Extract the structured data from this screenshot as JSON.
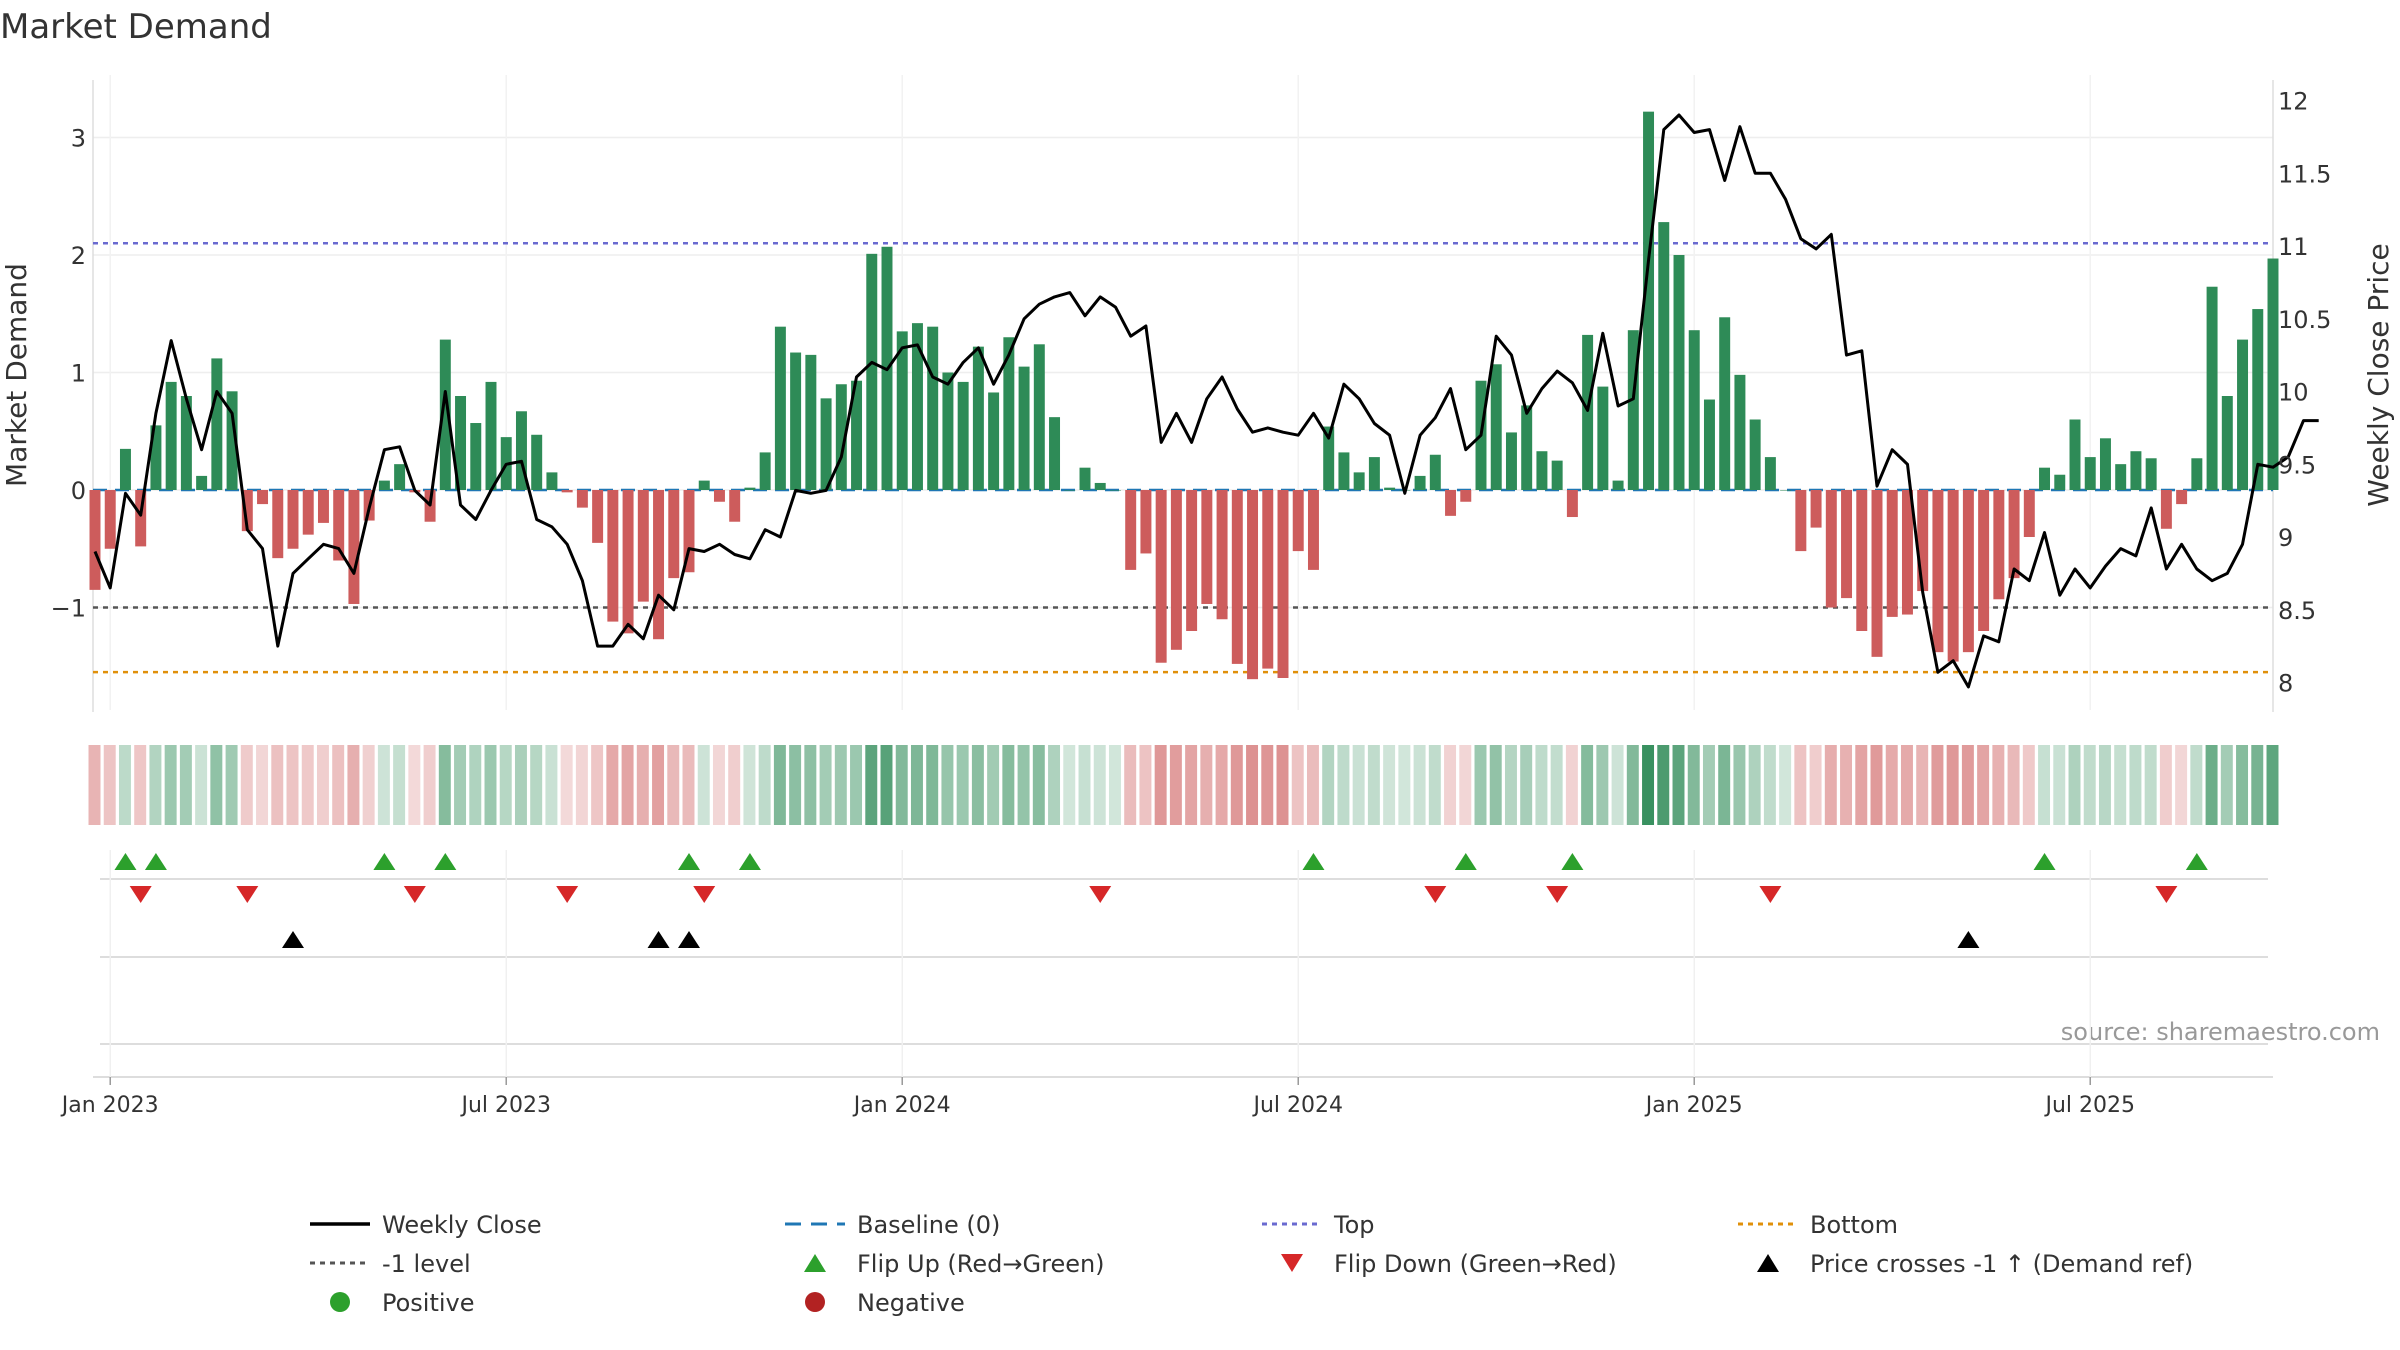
{
  "chart_data": {
    "type": "bar",
    "title": "Market Demand",
    "ylabel": "Market Demand",
    "y2label": "Weekly Close Price",
    "source": "source: sharemaestro.com",
    "ylim": [
      -1.9,
      3.5
    ],
    "y2lim": [
      7.95,
      12.3
    ],
    "y_ticks": [
      {
        "v": 3,
        "label": "3"
      },
      {
        "v": 2,
        "label": "2"
      },
      {
        "v": 1,
        "label": "1"
      },
      {
        "v": 0,
        "label": "0"
      },
      {
        "v": -1,
        "label": "−1"
      }
    ],
    "y2_ticks": [
      {
        "v": 12,
        "label": "12"
      },
      {
        "v": 11.5,
        "label": "11.5"
      },
      {
        "v": 11,
        "label": "11"
      },
      {
        "v": 10.5,
        "label": "10.5"
      },
      {
        "v": 10,
        "label": "10"
      },
      {
        "v": 9.5,
        "label": "9.5"
      },
      {
        "v": 9,
        "label": "9"
      },
      {
        "v": 8.5,
        "label": "8.5"
      },
      {
        "v": 8,
        "label": "8"
      }
    ],
    "x_ticks": [
      {
        "index": 1,
        "label": "Jan 2023"
      },
      {
        "index": 27,
        "label": "Jul 2023"
      },
      {
        "index": 53,
        "label": "Jan 2024"
      },
      {
        "index": 79,
        "label": "Jul 2024"
      },
      {
        "index": 105,
        "label": "Jan 2025"
      },
      {
        "index": 131,
        "label": "Jul 2025"
      }
    ],
    "reference_lines": {
      "top": 2.1,
      "minus_one": -1,
      "bottom": -1.55,
      "baseline": 0
    },
    "colors": {
      "positive": "#2e8b57",
      "negative": "#cd5c5c",
      "price": "#000000",
      "top": "#6a6ad0",
      "bottom": "#e0900a",
      "minus_one": "#555555",
      "baseline": "#1f77b4",
      "flip_up": "#2ca02c",
      "flip_down": "#d62728",
      "cross": "#000000",
      "dot_positive": "#2ca02c",
      "dot_negative": "#b22222"
    },
    "demand": [
      -0.85,
      -0.5,
      0.35,
      -0.48,
      0.55,
      0.92,
      0.8,
      0.12,
      1.12,
      0.84,
      -0.35,
      -0.12,
      -0.58,
      -0.5,
      -0.38,
      -0.28,
      -0.6,
      -0.97,
      -0.26,
      0.08,
      0.22,
      -0.02,
      -0.27,
      1.28,
      0.8,
      0.57,
      0.92,
      0.45,
      0.67,
      0.47,
      0.15,
      -0.02,
      -0.15,
      -0.45,
      -1.12,
      -1.22,
      -0.95,
      -1.27,
      -0.75,
      -0.7,
      0.08,
      -0.1,
      -0.27,
      0.02,
      0.32,
      1.39,
      1.17,
      1.15,
      0.78,
      0.9,
      0.93,
      2.01,
      2.07,
      1.35,
      1.42,
      1.39,
      1.0,
      0.92,
      1.22,
      0.83,
      1.3,
      1.05,
      1.24,
      0.62,
      0.0,
      0.19,
      0.06,
      0.0,
      -0.68,
      -0.54,
      -1.47,
      -1.36,
      -1.2,
      -0.97,
      -1.1,
      -1.48,
      -1.61,
      -1.52,
      -1.6,
      -0.52,
      -0.68,
      0.54,
      0.32,
      0.15,
      0.28,
      0.02,
      0.0,
      0.12,
      0.3,
      -0.22,
      -0.1,
      0.93,
      1.07,
      0.49,
      0.72,
      0.33,
      0.25,
      -0.23,
      1.32,
      0.88,
      0.08,
      1.36,
      3.22,
      2.28,
      2.0,
      1.36,
      0.77,
      1.47,
      0.98,
      0.6,
      0.28,
      0.0,
      -0.52,
      -0.32,
      -1.0,
      -0.92,
      -1.2,
      -1.42,
      -1.08,
      -1.06,
      -0.86,
      -1.38,
      -1.46,
      -1.38,
      -1.2,
      -0.93,
      -0.75,
      -0.4,
      0.19,
      0.13,
      0.6,
      0.28,
      0.44,
      0.22,
      0.33,
      0.27,
      -0.33,
      -0.12,
      0.27,
      1.73,
      0.8,
      1.28,
      1.54,
      1.97
    ],
    "price": [
      8.9,
      8.65,
      9.3,
      9.15,
      9.85,
      10.35,
      9.95,
      9.6,
      10,
      9.85,
      9.05,
      8.92,
      8.25,
      8.75,
      8.85,
      8.95,
      8.92,
      8.75,
      9.2,
      9.6,
      9.62,
      9.32,
      9.22,
      10,
      9.22,
      9.12,
      9.32,
      9.5,
      9.52,
      9.12,
      9.07,
      8.95,
      8.7,
      8.25,
      8.25,
      8.4,
      8.3,
      8.6,
      8.5,
      8.92,
      8.9,
      8.95,
      8.88,
      8.85,
      9.05,
      9,
      9.32,
      9.3,
      9.32,
      9.55,
      10.1,
      10.2,
      10.15,
      10.3,
      10.32,
      10.1,
      10.05,
      10.2,
      10.3,
      10.05,
      10.25,
      10.5,
      10.6,
      10.65,
      10.68,
      10.52,
      10.65,
      10.58,
      10.38,
      10.45,
      9.65,
      9.85,
      9.65,
      9.95,
      10.1,
      9.88,
      9.72,
      9.75,
      9.72,
      9.7,
      9.85,
      9.68,
      10.05,
      9.95,
      9.78,
      9.7,
      9.3,
      9.7,
      9.82,
      10.02,
      9.6,
      9.7,
      10.38,
      10.25,
      9.85,
      10.02,
      10.14,
      10.06,
      9.87,
      10.4,
      9.9,
      9.95,
      10.9,
      11.8,
      11.9,
      11.78,
      11.8,
      11.45,
      11.82,
      11.5,
      11.5,
      11.32,
      11.05,
      10.98,
      11.08,
      10.25,
      10.28,
      9.35,
      9.6,
      9.5,
      8.62,
      8.07,
      8.15,
      7.97,
      8.32,
      8.28,
      8.78,
      8.7,
      9.03,
      8.6,
      8.78,
      8.65,
      8.8,
      8.92,
      8.87,
      9.2,
      8.78,
      8.95,
      8.78,
      8.7,
      8.75,
      8.95,
      9.5,
      9.48,
      9.55,
      9.8,
      9.8
    ],
    "heat_strip": [
      -0.85,
      -0.5,
      0.35,
      -0.48,
      0.55,
      0.92,
      0.8,
      0.12,
      1.12,
      0.84,
      -0.35,
      -0.12,
      -0.58,
      -0.5,
      -0.38,
      -0.28,
      -0.6,
      -0.97,
      -0.26,
      0.08,
      0.22,
      -0.02,
      -0.27,
      1.28,
      0.8,
      0.57,
      0.92,
      0.45,
      0.67,
      0.47,
      0.15,
      -0.02,
      -0.15,
      -0.45,
      -1.12,
      -1.22,
      -0.95,
      -1.27,
      -0.75,
      -0.7,
      0.08,
      -0.1,
      -0.27,
      0.02,
      0.32,
      1.39,
      1.17,
      1.15,
      0.78,
      0.9,
      0.93,
      2.01,
      2.07,
      1.35,
      1.42,
      1.39,
      1.0,
      0.92,
      1.22,
      0.83,
      1.3,
      1.05,
      1.24,
      0.62,
      0.0,
      0.19,
      0.06,
      0.0,
      -0.68,
      -0.54,
      -1.47,
      -1.36,
      -1.2,
      -0.97,
      -1.1,
      -1.48,
      -1.61,
      -1.52,
      -1.6,
      -0.52,
      -0.68,
      0.54,
      0.32,
      0.15,
      0.28,
      0.02,
      0.0,
      0.12,
      0.3,
      -0.22,
      -0.1,
      0.93,
      1.07,
      0.49,
      0.72,
      0.33,
      0.25,
      -0.23,
      1.32,
      0.88,
      0.08,
      1.36,
      3.22,
      2.28,
      2.0,
      1.36,
      0.77,
      1.47,
      0.98,
      0.6,
      0.28,
      0.0,
      -0.52,
      -0.32,
      -1.0,
      -0.92,
      -1.2,
      -1.42,
      -1.08,
      -1.06,
      -0.86,
      -1.38,
      -1.46,
      -1.38,
      -1.2,
      -0.93,
      -0.75,
      -0.4,
      0.19,
      0.13,
      0.6,
      0.28,
      0.44,
      0.22,
      0.33,
      0.27,
      -0.33,
      -0.12,
      0.27,
      1.73,
      0.8,
      1.28,
      1.54,
      1.97
    ],
    "flip_up_weeks": [
      2,
      4,
      19,
      23,
      39,
      43,
      80,
      90,
      97,
      128,
      138
    ],
    "flip_down_weeks": [
      3,
      10,
      21,
      31,
      40,
      66,
      88,
      96,
      110,
      136
    ],
    "price_cross_weeks": [
      13,
      37,
      39,
      123
    ],
    "legend": [
      {
        "key": "weekly_close",
        "label": "Weekly Close",
        "marker": "line"
      },
      {
        "key": "baseline",
        "label": "Baseline (0)",
        "marker": "dash"
      },
      {
        "key": "top",
        "label": "Top",
        "marker": "dot"
      },
      {
        "key": "bottom",
        "label": "Bottom",
        "marker": "dot"
      },
      {
        "key": "minus_one",
        "label": "-1 level",
        "marker": "dot"
      },
      {
        "key": "flip_up",
        "label": "Flip Up (Red→Green)",
        "marker": "tri-up"
      },
      {
        "key": "flip_down",
        "label": "Flip Down (Green→Red)",
        "marker": "tri-down"
      },
      {
        "key": "cross",
        "label": "Price crosses -1 ↑ (Demand ref)",
        "marker": "tri-up"
      },
      {
        "key": "positive",
        "label": "Positive",
        "marker": "circle"
      },
      {
        "key": "negative",
        "label": "Negative",
        "marker": "circle"
      }
    ]
  }
}
